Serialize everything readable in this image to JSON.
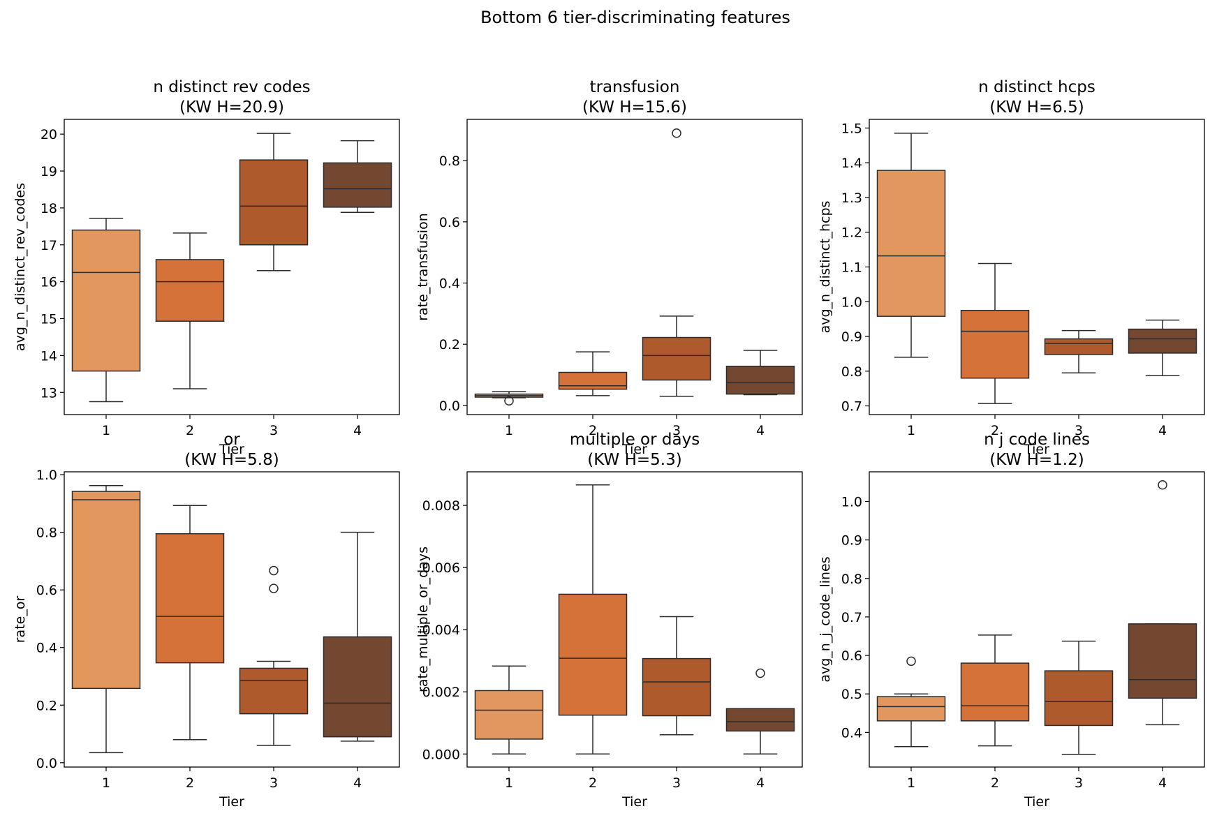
{
  "suptitle": "Bottom 6 tier-discriminating features",
  "colors": {
    "tier1": "#E2975F",
    "tier2": "#D4723A",
    "tier3": "#AE5A2D",
    "tier4": "#744731",
    "line": "#2b2b2b",
    "axes": "#000000"
  },
  "chart_data": [
    {
      "type": "box",
      "title": "n distinct rev codes",
      "subtitle": "(KW H=20.9)",
      "xlabel": "Tier",
      "ylabel": "avg_n_distinct_rev_codes",
      "categories": [
        "1",
        "2",
        "3",
        "4"
      ],
      "ylim": [
        12.4,
        20.4
      ],
      "yticks": [
        13,
        14,
        15,
        16,
        17,
        18,
        19,
        20
      ],
      "yticklabels": [
        "13",
        "14",
        "15",
        "16",
        "17",
        "18",
        "19",
        "20"
      ],
      "boxes": [
        {
          "tier": "1",
          "whislo": 12.75,
          "q1": 13.58,
          "med": 16.25,
          "q3": 17.4,
          "whishi": 17.72,
          "fliers": []
        },
        {
          "tier": "2",
          "whislo": 13.1,
          "q1": 14.93,
          "med": 16.0,
          "q3": 16.6,
          "whishi": 17.32,
          "fliers": []
        },
        {
          "tier": "3",
          "whislo": 16.3,
          "q1": 17.0,
          "med": 18.05,
          "q3": 19.3,
          "whishi": 20.02,
          "fliers": []
        },
        {
          "tier": "4",
          "whislo": 17.88,
          "q1": 18.02,
          "med": 18.52,
          "q3": 19.22,
          "whishi": 19.82,
          "fliers": []
        }
      ]
    },
    {
      "type": "box",
      "title": "transfusion",
      "subtitle": "(KW H=15.6)",
      "xlabel": "Tier",
      "ylabel": "rate_transfusion",
      "categories": [
        "1",
        "2",
        "3",
        "4"
      ],
      "ylim": [
        -0.03,
        0.935
      ],
      "yticks": [
        0.0,
        0.2,
        0.4,
        0.6,
        0.8
      ],
      "yticklabels": [
        "0.0",
        "0.2",
        "0.4",
        "0.6",
        "0.8"
      ],
      "boxes": [
        {
          "tier": "1",
          "whislo": 0.025,
          "q1": 0.027,
          "med": 0.032,
          "q3": 0.037,
          "whishi": 0.045,
          "fliers": [
            0.015
          ]
        },
        {
          "tier": "2",
          "whislo": 0.032,
          "q1": 0.053,
          "med": 0.064,
          "q3": 0.108,
          "whishi": 0.175,
          "fliers": []
        },
        {
          "tier": "3",
          "whislo": 0.03,
          "q1": 0.083,
          "med": 0.163,
          "q3": 0.222,
          "whishi": 0.292,
          "fliers": [
            0.89
          ]
        },
        {
          "tier": "4",
          "whislo": 0.035,
          "q1": 0.037,
          "med": 0.074,
          "q3": 0.128,
          "whishi": 0.18,
          "fliers": []
        }
      ]
    },
    {
      "type": "box",
      "title": "n distinct hcps",
      "subtitle": "(KW H=6.5)",
      "xlabel": "Tier",
      "ylabel": "avg_n_distinct_hcps",
      "categories": [
        "1",
        "2",
        "3",
        "4"
      ],
      "ylim": [
        0.675,
        1.525
      ],
      "yticks": [
        0.7,
        0.8,
        0.9,
        1.0,
        1.1,
        1.2,
        1.3,
        1.4,
        1.5
      ],
      "yticklabels": [
        "0.7",
        "0.8",
        "0.9",
        "1.0",
        "1.1",
        "1.2",
        "1.3",
        "1.4",
        "1.5"
      ],
      "boxes": [
        {
          "tier": "1",
          "whislo": 0.84,
          "q1": 0.958,
          "med": 1.132,
          "q3": 1.378,
          "whishi": 1.485,
          "fliers": []
        },
        {
          "tier": "2",
          "whislo": 0.707,
          "q1": 0.78,
          "med": 0.915,
          "q3": 0.975,
          "whishi": 1.11,
          "fliers": []
        },
        {
          "tier": "3",
          "whislo": 0.795,
          "q1": 0.848,
          "med": 0.88,
          "q3": 0.893,
          "whishi": 0.917,
          "fliers": []
        },
        {
          "tier": "4",
          "whislo": 0.787,
          "q1": 0.852,
          "med": 0.893,
          "q3": 0.921,
          "whishi": 0.947,
          "fliers": []
        }
      ]
    },
    {
      "type": "box",
      "title": "or",
      "subtitle": "(KW H=5.8)",
      "xlabel": "Tier",
      "ylabel": "rate_or",
      "categories": [
        "1",
        "2",
        "3",
        "4"
      ],
      "ylim": [
        -0.015,
        1.01
      ],
      "yticks": [
        0.0,
        0.2,
        0.4,
        0.6,
        0.8,
        1.0
      ],
      "yticklabels": [
        "0.0",
        "0.2",
        "0.4",
        "0.6",
        "0.8",
        "1.0"
      ],
      "boxes": [
        {
          "tier": "1",
          "whislo": 0.035,
          "q1": 0.258,
          "med": 0.913,
          "q3": 0.942,
          "whishi": 0.962,
          "fliers": []
        },
        {
          "tier": "2",
          "whislo": 0.08,
          "q1": 0.347,
          "med": 0.508,
          "q3": 0.795,
          "whishi": 0.893,
          "fliers": []
        },
        {
          "tier": "3",
          "whislo": 0.06,
          "q1": 0.17,
          "med": 0.285,
          "q3": 0.328,
          "whishi": 0.352,
          "fliers": [
            0.605,
            0.667
          ]
        },
        {
          "tier": "4",
          "whislo": 0.075,
          "q1": 0.09,
          "med": 0.207,
          "q3": 0.437,
          "whishi": 0.8,
          "fliers": []
        }
      ]
    },
    {
      "type": "box",
      "title": "multiple or days",
      "subtitle": "(KW H=5.3)",
      "xlabel": "Tier",
      "ylabel": "rate_multiple_or_days",
      "categories": [
        "1",
        "2",
        "3",
        "4"
      ],
      "ylim": [
        -0.00042,
        0.00908
      ],
      "yticks": [
        0.0,
        0.002,
        0.004,
        0.006,
        0.008
      ],
      "yticklabels": [
        "0.000",
        "0.002",
        "0.004",
        "0.006",
        "0.008"
      ],
      "boxes": [
        {
          "tier": "1",
          "whislo": 0.0,
          "q1": 0.00048,
          "med": 0.00141,
          "q3": 0.00204,
          "whishi": 0.00283,
          "fliers": []
        },
        {
          "tier": "2",
          "whislo": 0.0,
          "q1": 0.00125,
          "med": 0.00308,
          "q3": 0.00514,
          "whishi": 0.00866,
          "fliers": []
        },
        {
          "tier": "3",
          "whislo": 0.00062,
          "q1": 0.00123,
          "med": 0.00232,
          "q3": 0.00307,
          "whishi": 0.00442,
          "fliers": []
        },
        {
          "tier": "4",
          "whislo": 0.0,
          "q1": 0.00074,
          "med": 0.00104,
          "q3": 0.00146,
          "whishi": 0.00146,
          "fliers": [
            0.0026
          ]
        }
      ]
    },
    {
      "type": "box",
      "title": "n j code lines",
      "subtitle": "(KW H=1.2)",
      "xlabel": "Tier",
      "ylabel": "avg_n_j_code_lines",
      "categories": [
        "1",
        "2",
        "3",
        "4"
      ],
      "ylim": [
        0.31,
        1.077
      ],
      "yticks": [
        0.4,
        0.5,
        0.6,
        0.7,
        0.8,
        0.9,
        1.0
      ],
      "yticklabels": [
        "0.4",
        "0.5",
        "0.6",
        "0.7",
        "0.8",
        "0.9",
        "1.0"
      ],
      "boxes": [
        {
          "tier": "1",
          "whislo": 0.363,
          "q1": 0.43,
          "med": 0.467,
          "q3": 0.493,
          "whishi": 0.5,
          "fliers": [
            0.585
          ]
        },
        {
          "tier": "2",
          "whislo": 0.365,
          "q1": 0.43,
          "med": 0.469,
          "q3": 0.58,
          "whishi": 0.653,
          "fliers": []
        },
        {
          "tier": "3",
          "whislo": 0.343,
          "q1": 0.418,
          "med": 0.48,
          "q3": 0.56,
          "whishi": 0.637,
          "fliers": []
        },
        {
          "tier": "4",
          "whislo": 0.42,
          "q1": 0.489,
          "med": 0.537,
          "q3": 0.682,
          "whishi": 0.682,
          "fliers": [
            1.043
          ]
        }
      ]
    }
  ]
}
